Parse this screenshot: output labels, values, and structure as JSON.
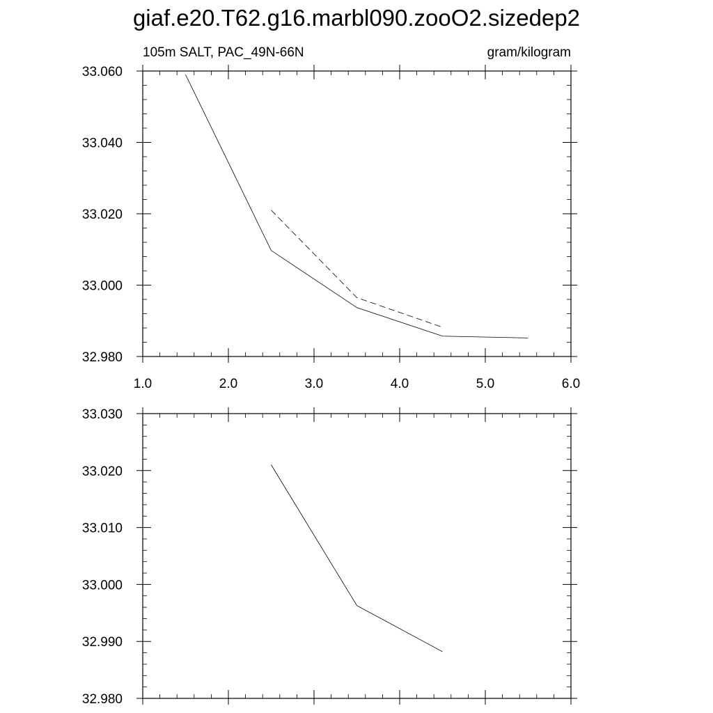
{
  "chart_data": [
    {
      "type": "line",
      "title": "giaf.e20.T62.g16.marbl090.zooO2.sizedep2",
      "subtitle_left": "105m SALT, PAC_49N-66N",
      "subtitle_right": "gram/kilogram",
      "xlim": [
        1.0,
        6.0
      ],
      "ylim": [
        32.98,
        33.06
      ],
      "x_ticks": [
        "1.0",
        "2.0",
        "3.0",
        "4.0",
        "5.0",
        "6.0"
      ],
      "y_ticks": [
        "32.980",
        "33.000",
        "33.020",
        "33.040",
        "33.060"
      ],
      "grid": false,
      "series": [
        {
          "style": "solid",
          "x": [
            1.5,
            2.5,
            3.5,
            4.5,
            5.5
          ],
          "y": [
            33.059,
            33.0097,
            32.9937,
            32.9857,
            32.9852
          ]
        },
        {
          "style": "dashed",
          "x": [
            2.5,
            3.5,
            4.5
          ],
          "y": [
            33.021,
            32.9965,
            32.9882
          ]
        }
      ]
    },
    {
      "type": "line",
      "xlim": [
        1.0,
        6.0
      ],
      "ylim": [
        32.98,
        33.03
      ],
      "x_ticks": [],
      "y_ticks": [
        "32.980",
        "32.990",
        "33.000",
        "33.010",
        "33.020",
        "33.030"
      ],
      "grid": false,
      "series": [
        {
          "style": "solid",
          "x": [
            2.5,
            3.5,
            4.5
          ],
          "y": [
            33.021,
            32.9963,
            32.9882
          ]
        }
      ]
    }
  ]
}
